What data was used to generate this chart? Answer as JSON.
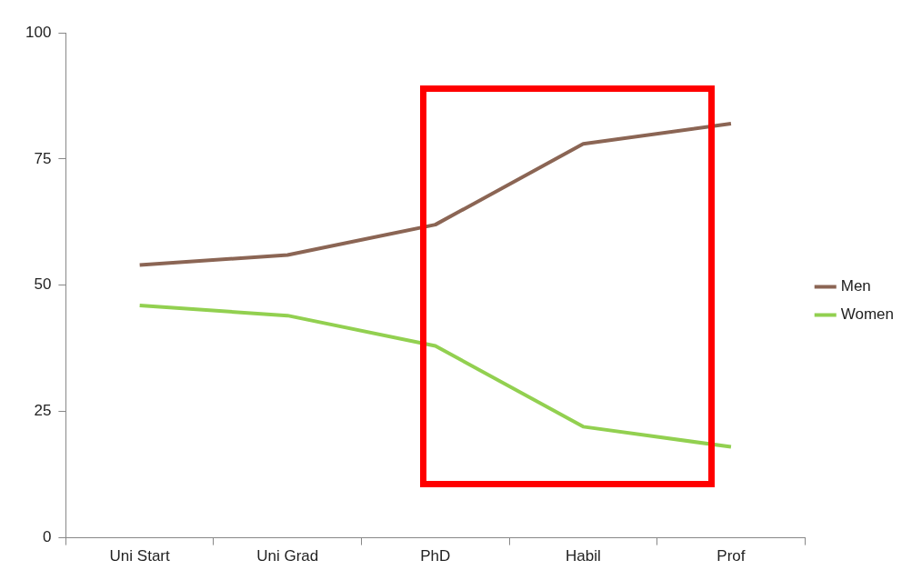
{
  "chart_data": {
    "type": "line",
    "categories": [
      "Uni Start",
      "Uni Grad",
      "PhD",
      "Habil",
      "Prof"
    ],
    "series": [
      {
        "name": "Men",
        "color": "#8b6554",
        "values": [
          54,
          56,
          62,
          78,
          82
        ]
      },
      {
        "name": "Women",
        "color": "#92d050",
        "values": [
          46,
          44,
          38,
          22,
          18
        ]
      }
    ],
    "ylim": [
      0,
      100
    ],
    "yticks": [
      0,
      25,
      50,
      75,
      100
    ],
    "grid": false,
    "legend": "right",
    "marker": "none",
    "line_style": "solid"
  }
}
